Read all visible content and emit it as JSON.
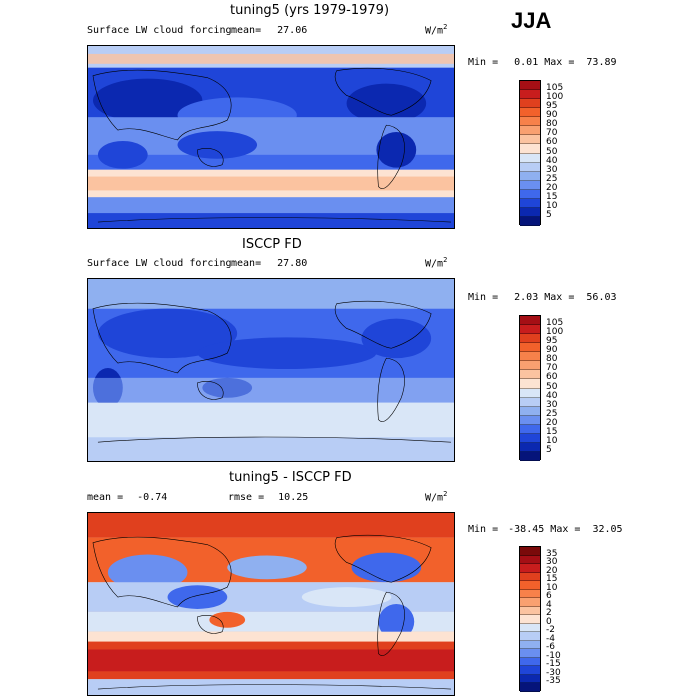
{
  "season": "JJA",
  "panels": [
    {
      "title": "tuning5 (yrs 1979-1979)",
      "variable": "Surface LW cloud forcing",
      "mean_label": "mean=",
      "mean_value": "27.06",
      "units": "W/m",
      "units_exp": "2",
      "min_label": "Min =",
      "min_value": "0.01",
      "max_label": "Max =",
      "max_value": "73.89",
      "levels": [
        "105",
        "100",
        "95",
        "90",
        "80",
        "70",
        "60",
        "50",
        "40",
        "30",
        "25",
        "20",
        "15",
        "10",
        "5"
      ],
      "colors": [
        "#a50f15",
        "#c81d1d",
        "#e0401e",
        "#f2612b",
        "#f7814a",
        "#f9a070",
        "#fbc3a0",
        "#fde3d2",
        "#d9e6f7",
        "#b8cdf5",
        "#8fb0f0",
        "#6a8ff0",
        "#3f68ec",
        "#1f45d8",
        "#0b28b0",
        "#05147a"
      ]
    },
    {
      "title": "ISCCP FD",
      "variable": "Surface LW cloud forcing",
      "mean_label": "mean=",
      "mean_value": "27.80",
      "units": "W/m",
      "units_exp": "2",
      "min_label": "Min =",
      "min_value": "2.03",
      "max_label": "Max =",
      "max_value": "56.03",
      "levels": [
        "105",
        "100",
        "95",
        "90",
        "80",
        "70",
        "60",
        "50",
        "40",
        "30",
        "25",
        "20",
        "15",
        "10",
        "5"
      ],
      "colors": [
        "#a50f15",
        "#c81d1d",
        "#e0401e",
        "#f2612b",
        "#f7814a",
        "#f9a070",
        "#fbc3a0",
        "#fde3d2",
        "#d9e6f7",
        "#b8cdf5",
        "#8fb0f0",
        "#6a8ff0",
        "#3f68ec",
        "#1f45d8",
        "#0b28b0",
        "#05147a"
      ]
    },
    {
      "title": "tuning5 - ISCCP FD",
      "mean_label": "mean =",
      "mean_value": "-0.74",
      "rmse_label": "rmse =",
      "rmse_value": "10.25",
      "units": "W/m",
      "units_exp": "2",
      "min_label": "Min =",
      "min_value": "-38.45",
      "max_label": "Max =",
      "max_value": "32.05",
      "levels": [
        "35",
        "30",
        "20",
        "15",
        "10",
        "6",
        "4",
        "2",
        "0",
        "-2",
        "-4",
        "-6",
        "-10",
        "-15",
        "-30",
        "-35"
      ],
      "colors": [
        "#7a0a0a",
        "#a50f15",
        "#c81d1d",
        "#e0401e",
        "#f2612b",
        "#f7814a",
        "#f9a070",
        "#fbc3a0",
        "#fde3d2",
        "#d9e6f7",
        "#b8cdf5",
        "#8fb0f0",
        "#6a8ff0",
        "#3f68ec",
        "#1f45d8",
        "#0b28b0",
        "#05147a"
      ]
    }
  ]
}
